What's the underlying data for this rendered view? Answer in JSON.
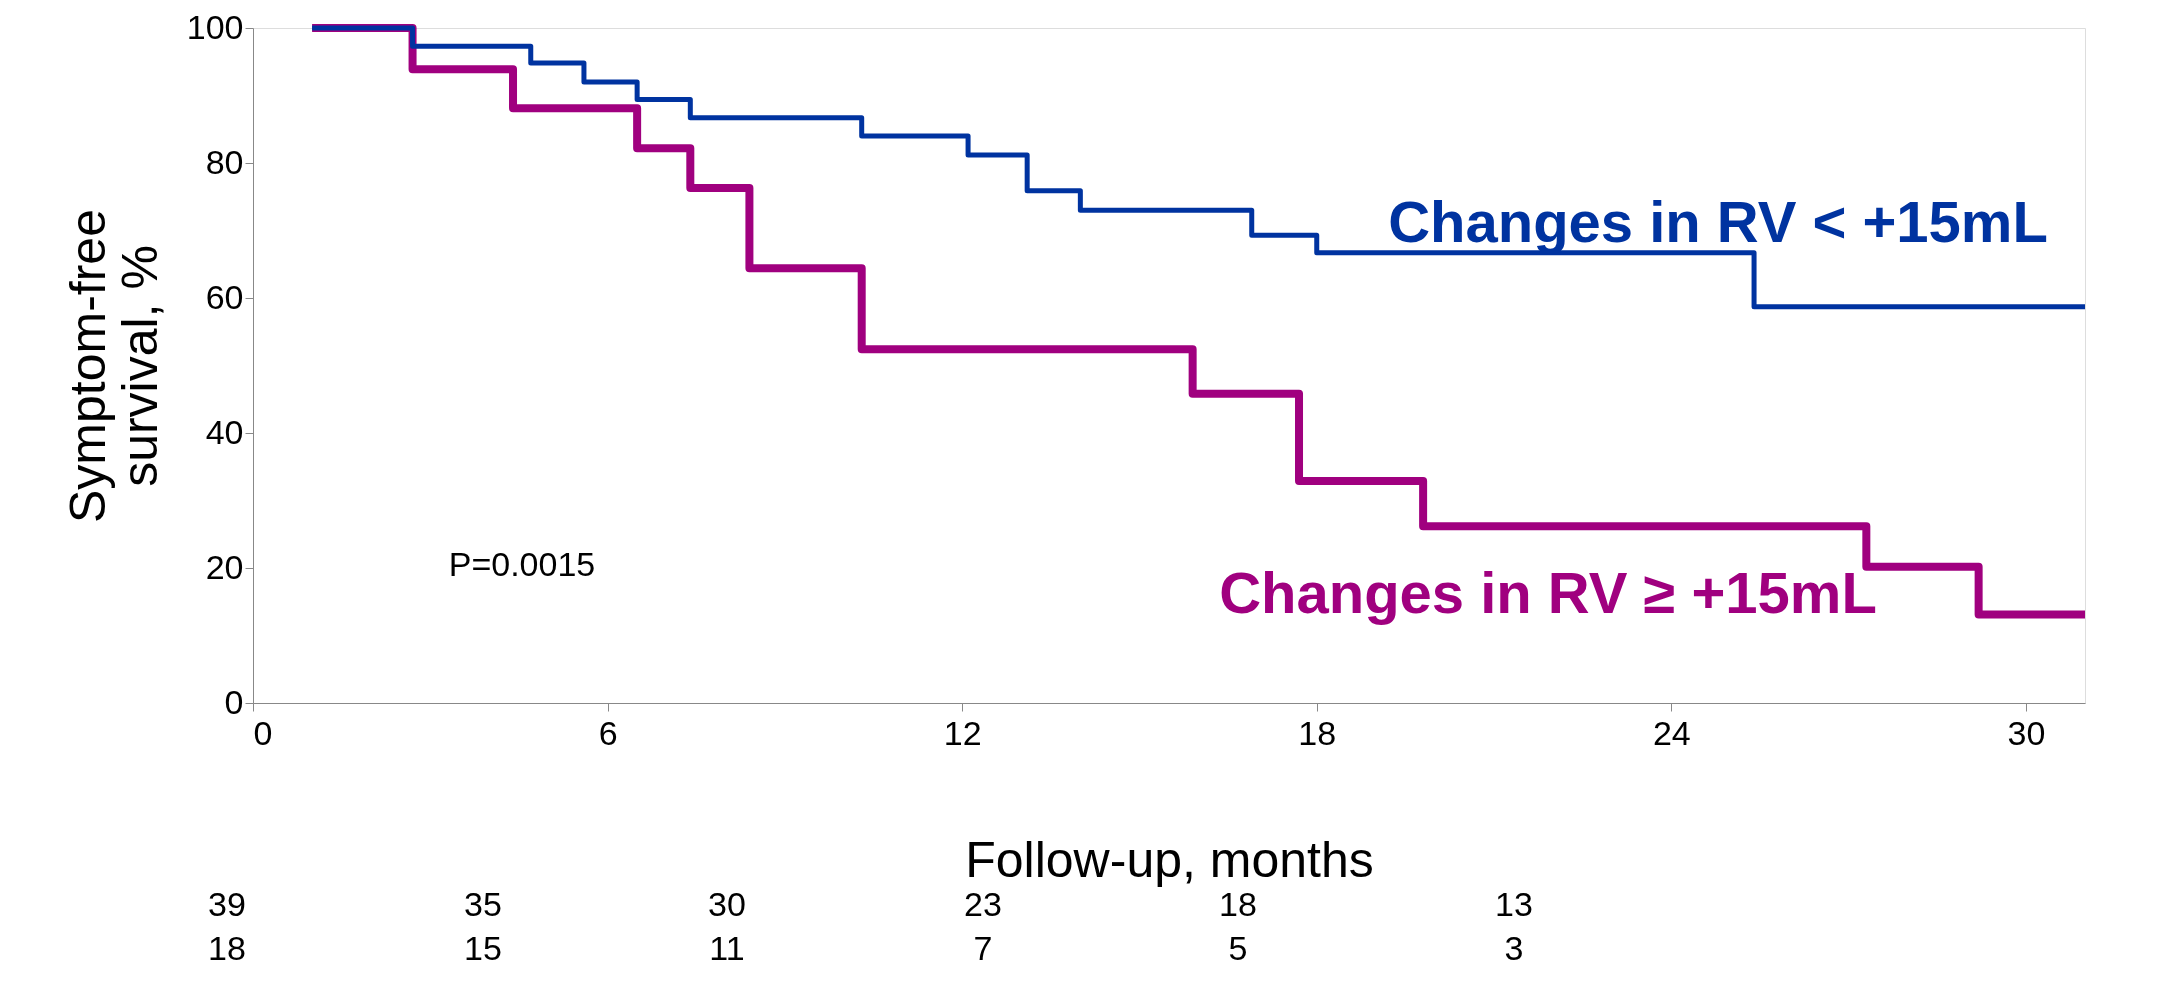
{
  "chart_data": {
    "type": "step",
    "xlabel": "Follow-up, months",
    "ylabel": "Symptom-free survival, %",
    "xlim": [
      0,
      31
    ],
    "xticks": [
      0,
      6,
      12,
      18,
      24,
      30
    ],
    "ylim": [
      0,
      100
    ],
    "yticks": [
      0,
      20,
      40,
      60,
      80,
      100
    ],
    "grid": false,
    "series": [
      {
        "name": "Changes in RV < +15mL",
        "color": "#0033a0",
        "x": [
          1,
          2.7,
          4.7,
          5.6,
          6.5,
          7.4,
          10.3,
          12.1,
          13.1,
          14.0,
          16.9,
          18.0,
          25.4,
          31
        ],
        "values": [
          100,
          97.3,
          94.8,
          92,
          89.4,
          86.7,
          84,
          81.2,
          75.9,
          73,
          69.3,
          66.7,
          58.7,
          58.7
        ]
      },
      {
        "name": "Changes in RV ≥ +15mL",
        "color": "#a0007f",
        "x": [
          1,
          2.7,
          4.4,
          6.5,
          7.4,
          8.4,
          10.3,
          15.9,
          17.7,
          19.8,
          27.3,
          29.2,
          31
        ],
        "values": [
          100,
          93.9,
          88.1,
          82.2,
          76.3,
          64.4,
          52.4,
          45.8,
          32.9,
          26.2,
          20.2,
          13.1,
          13.1
        ]
      }
    ],
    "annotations": [
      "P=0.0015",
      "39",
      "35",
      "30",
      "23",
      "18",
      "13",
      "18",
      "15",
      "11",
      "7",
      "5",
      "3"
    ]
  }
}
